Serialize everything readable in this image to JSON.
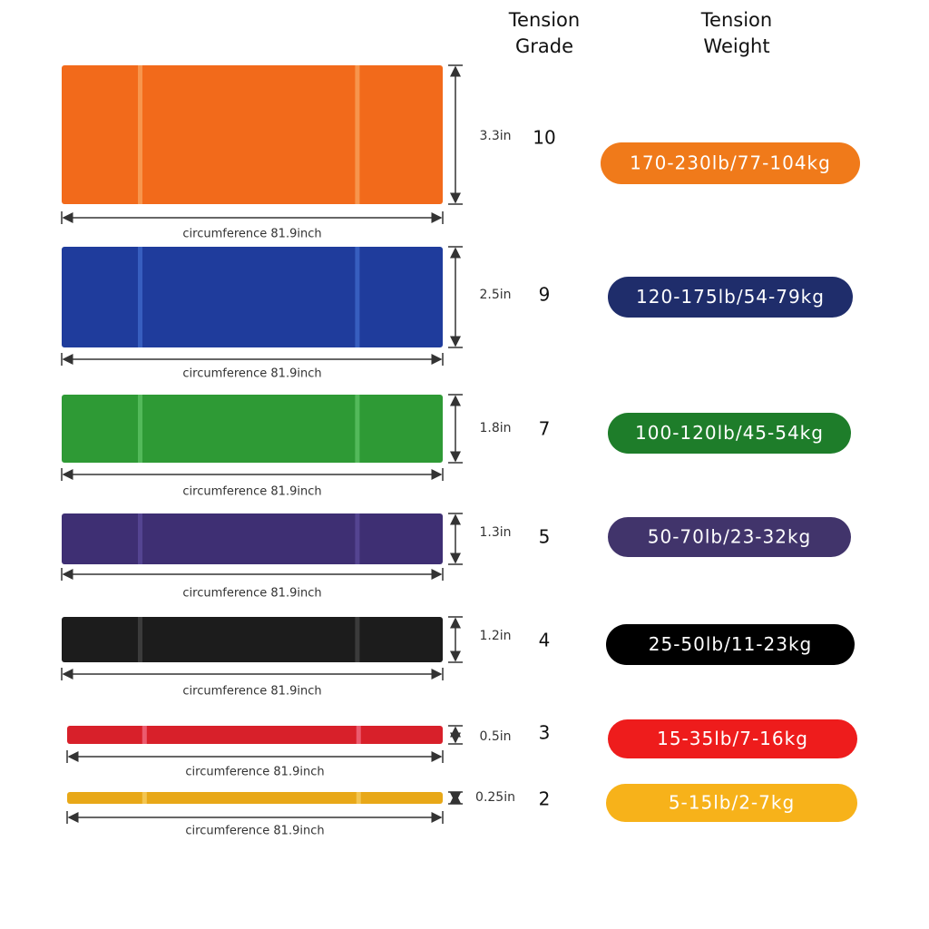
{
  "headers": [
    {
      "lines": [
        "Tension",
        "Grade"
      ]
    },
    {
      "lines": [
        "Tension",
        "Weight"
      ]
    }
  ],
  "rows": [
    {
      "width": "3.3in",
      "grade": 10,
      "weight": "170-230lb/77-104kg",
      "length": "circumference 81.9inch"
    },
    {
      "width": "2.5in",
      "grade": 9,
      "weight": "120-175lb/54-79kg",
      "length": "circumference 81.9inch"
    },
    {
      "width": "1.8in",
      "grade": 7,
      "weight": "100-120lb/45-54kg",
      "length": "circumference 81.9inch"
    },
    {
      "width": "1.3in",
      "grade": 5,
      "weight": "50-70lb/23-32kg",
      "length": "circumference 81.9inch"
    },
    {
      "width": "1.2in",
      "grade": 4,
      "weight": "25-50lb/11-23kg",
      "length": "circumference 81.9inch"
    },
    {
      "width": "0.5in",
      "grade": 3,
      "weight": "15-35lb/7-16kg",
      "length": "circumference 81.9inch"
    },
    {
      "width": "0.25in",
      "grade": 2,
      "weight": "5-15lb/2-7kg",
      "length": "circumference 81.9inch"
    }
  ]
}
